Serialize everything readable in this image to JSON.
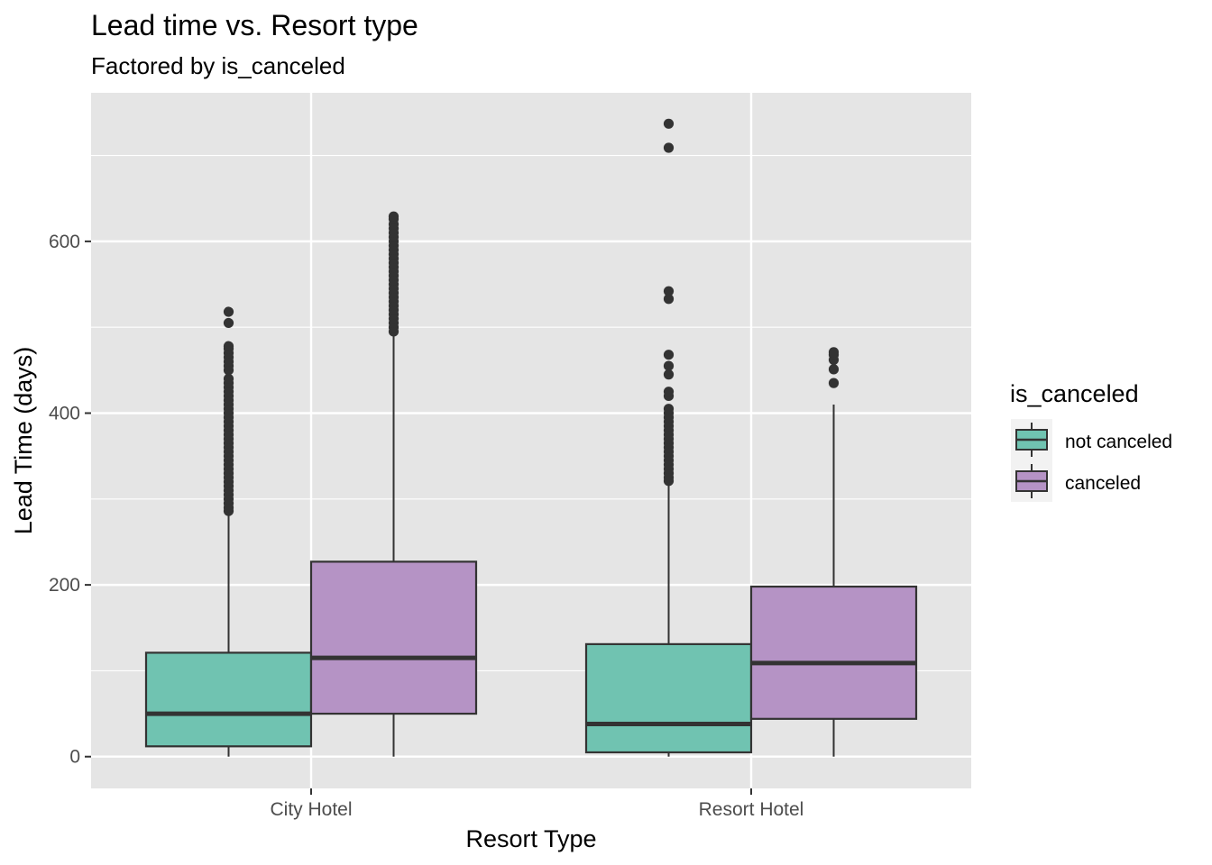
{
  "chart_data": {
    "type": "boxplot",
    "title": "Lead time vs. Resort type",
    "subtitle": "Factored by is_canceled",
    "xlabel": "Resort Type",
    "ylabel": "Lead Time (days)",
    "ylim": [
      -37,
      773
    ],
    "yticks": [
      0,
      200,
      400,
      600
    ],
    "categories": [
      "City Hotel",
      "Resort Hotel"
    ],
    "grid": true,
    "legend": {
      "title": "is_canceled",
      "position": "right",
      "items": [
        {
          "name": "not canceled",
          "color": "#70C3B1"
        },
        {
          "name": "canceled",
          "color": "#B593C5"
        }
      ]
    },
    "series": [
      {
        "name": "not canceled",
        "color": "#70C3B1",
        "boxes": [
          {
            "category": "City Hotel",
            "min": 0,
            "q1": 12,
            "median": 50,
            "q3": 121,
            "max": 284,
            "outliers": [
              286,
              290,
              295,
              300,
              305,
              310,
              315,
              320,
              325,
              330,
              335,
              340,
              345,
              350,
              355,
              360,
              365,
              370,
              375,
              380,
              385,
              390,
              395,
              400,
              405,
              410,
              415,
              420,
              425,
              430,
              435,
              440,
              450,
              455,
              460,
              465,
              470,
              475,
              478,
              505,
              518
            ]
          },
          {
            "category": "Resort Hotel",
            "min": 0,
            "q1": 5,
            "median": 38,
            "q3": 131,
            "max": 318,
            "outliers": [
              321,
              325,
              330,
              335,
              340,
              345,
              350,
              355,
              360,
              365,
              370,
              375,
              380,
              385,
              390,
              395,
              400,
              405,
              420,
              425,
              445,
              455,
              468,
              533,
              542,
              709,
              737
            ]
          }
        ]
      },
      {
        "name": "canceled",
        "color": "#B593C5",
        "boxes": [
          {
            "category": "City Hotel",
            "min": 0,
            "q1": 50,
            "median": 115,
            "q3": 227,
            "max": 492,
            "outliers": [
              495,
              500,
              505,
              510,
              515,
              520,
              525,
              530,
              535,
              540,
              545,
              550,
              555,
              560,
              565,
              570,
              575,
              580,
              585,
              590,
              595,
              600,
              605,
              610,
              615,
              620,
              626,
              629
            ]
          },
          {
            "category": "Resort Hotel",
            "min": 0,
            "q1": 44,
            "median": 109,
            "q3": 198,
            "max": 410,
            "outliers": [
              435,
              451,
              462,
              468,
              471
            ]
          }
        ]
      }
    ]
  }
}
